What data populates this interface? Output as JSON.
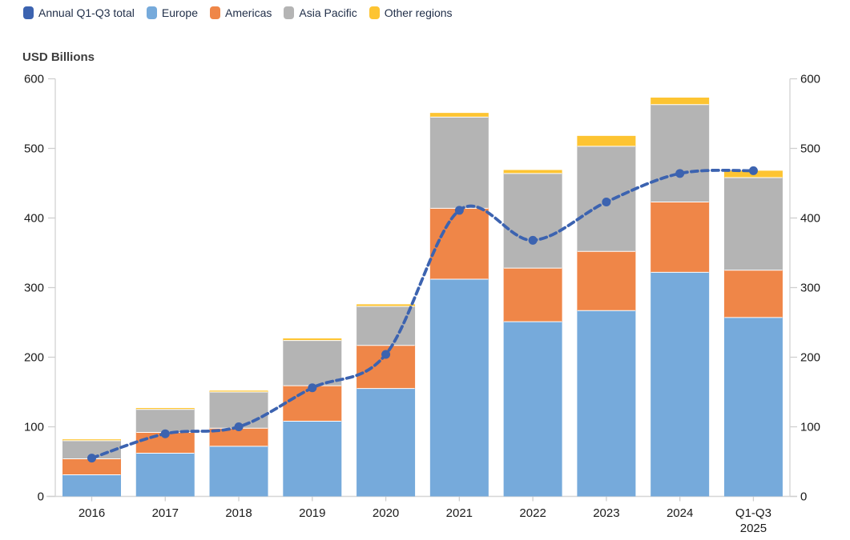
{
  "title": "USD Billions",
  "colors": {
    "line": "#3C63B0",
    "europe": "#76AADB",
    "americas": "#EF8648",
    "asia_pacific": "#B4B4B4",
    "other_regions": "#FDC432",
    "axis": "#D6D6D6",
    "tick": "#CFCFCF",
    "tick_text": "#1A1A1A",
    "legend_text": "#22304A",
    "title_text": "#3D3D3D"
  },
  "legend": {
    "items": [
      {
        "label": "Annual Q1-Q3 total",
        "color_key": "line",
        "series_key": "annual-q1-q3-total"
      },
      {
        "label": "Europe",
        "color_key": "europe",
        "series_key": "europe"
      },
      {
        "label": "Americas",
        "color_key": "americas",
        "series_key": "americas"
      },
      {
        "label": "Asia Pacific",
        "color_key": "asia_pacific",
        "series_key": "asia-pacific"
      },
      {
        "label": "Other regions",
        "color_key": "other_regions",
        "series_key": "other-regions"
      }
    ]
  },
  "chart_data": {
    "type": "bar",
    "stacked": true,
    "title": "USD Billions",
    "ylabel": "USD Billions",
    "grid": false,
    "legend_position": "top-left",
    "dual_y_axis": true,
    "ylim": [
      0,
      600
    ],
    "yticks": [
      0,
      100,
      200,
      300,
      400,
      500,
      600
    ],
    "categories": [
      "2016",
      "2017",
      "2018",
      "2019",
      "2020",
      "2021",
      "2022",
      "2023",
      "2024",
      "Q1-Q3 2025"
    ],
    "category_labels": [
      [
        "2016"
      ],
      [
        "2017"
      ],
      [
        "2018"
      ],
      [
        "2019"
      ],
      [
        "2020"
      ],
      [
        "2021"
      ],
      [
        "2022"
      ],
      [
        "2023"
      ],
      [
        "2024"
      ],
      [
        "Q1-Q3",
        "2025"
      ]
    ],
    "series": [
      {
        "name": "Europe",
        "color_key": "europe",
        "values": [
          31,
          62,
          72,
          108,
          155,
          312,
          251,
          267,
          322,
          257
        ]
      },
      {
        "name": "Americas",
        "color_key": "americas",
        "values": [
          23,
          30,
          26,
          51,
          62,
          102,
          77,
          85,
          101,
          68
        ]
      },
      {
        "name": "Asia Pacific",
        "color_key": "asia_pacific",
        "values": [
          26,
          33,
          52,
          65,
          56,
          131,
          136,
          151,
          140,
          133
        ]
      },
      {
        "name": "Other regions",
        "color_key": "other_regions",
        "values": [
          2,
          2,
          2,
          3,
          3,
          6,
          5,
          15,
          10,
          10
        ]
      }
    ],
    "stack_totals": [
      82,
      127,
      152,
      227,
      276,
      551,
      469,
      518,
      573,
      468
    ],
    "line_series": {
      "name": "Annual Q1-Q3 total",
      "color_key": "line",
      "style": "dashed",
      "markers": true,
      "values": [
        55,
        90,
        100,
        156,
        204,
        411,
        368,
        423,
        464,
        468
      ]
    }
  }
}
